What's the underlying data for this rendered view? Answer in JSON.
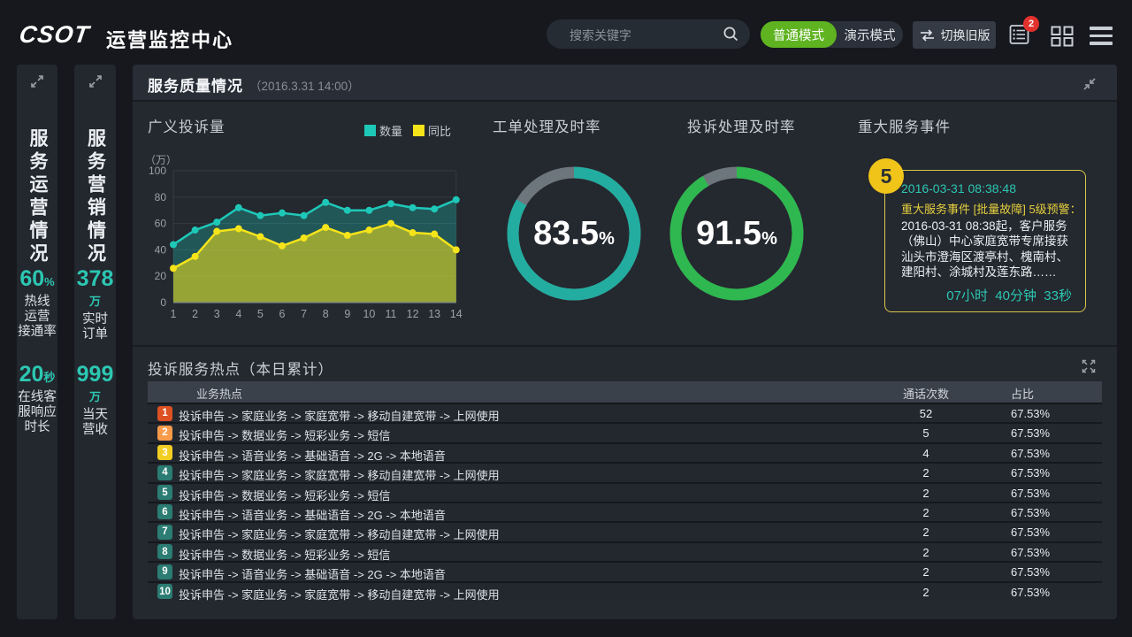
{
  "topbar": {
    "logo": "CSOT",
    "title": "运营监控中心",
    "search": {
      "placeholder": "搜索关键字"
    },
    "mode_toggle": {
      "normal": "普通模式",
      "demo": "演示模式",
      "active": "普通模式",
      "active_color": "#5fb321"
    },
    "switch_old_label": "切换旧版",
    "notification_badge": "2",
    "icons": [
      "swap-icon",
      "list-icon",
      "grid-icon",
      "menu-icon"
    ]
  },
  "sidebars": [
    {
      "title": "服务运营情况",
      "stats": [
        {
          "value": "60",
          "unit": "%",
          "label": "热线\n运营\n接通率"
        },
        {
          "value": "20",
          "unit": "秒",
          "label": "在线客\n服响应\n时长"
        }
      ]
    },
    {
      "title": "服务营销情况",
      "stats": [
        {
          "value": "378",
          "unit": "万",
          "label": "实时\n订单"
        },
        {
          "value": "999",
          "unit": "万",
          "label": "当天\n营收"
        }
      ]
    }
  ],
  "quality_panel": {
    "title": "服务质量情况",
    "timestamp": "（2016.3.31 14:00）",
    "event_section_title": "重大服务事件",
    "event": {
      "badge": "5",
      "badge_color": "#f0c419",
      "border_color": "#d8c64a",
      "datetime": "2016-03-31  08:38:48",
      "headline": "重大服务事件 [批量故障] 5级预警：",
      "body": "2016-03-31 08:38起，客户服务（佛山）中心家庭宽带专席接获汕头市澄海区渡亭村、槐南村、建阳村、涂城村及莲东路……",
      "elapsed": "07小时  40分钟  33秒",
      "accent_color": "#2cc7b2"
    }
  },
  "hotspots": {
    "title": "投诉服务热点（本日累计）",
    "columns": [
      "业务热点",
      "通话次数",
      "占比"
    ],
    "rows": [
      {
        "rank": "1",
        "color": "#dd5122",
        "label": "投诉申告 -> 家庭业务 -> 家庭宽带 -> 移动自建宽带 -> 上网使用",
        "count": "52",
        "pct": "67.53%"
      },
      {
        "rank": "2",
        "color": "#f89b4b",
        "label": "投诉申告 -> 数据业务 -> 短彩业务 -> 短信",
        "count": "5",
        "pct": "67.53%"
      },
      {
        "rank": "3",
        "color": "#f2ce23",
        "label": "投诉申告 -> 语音业务 -> 基础语音 -> 2G -> 本地语音",
        "count": "4",
        "pct": "67.53%"
      },
      {
        "rank": "4",
        "color": "#2b7c72",
        "label": "投诉申告 -> 家庭业务 -> 家庭宽带 -> 移动自建宽带 -> 上网使用",
        "count": "2",
        "pct": "67.53%"
      },
      {
        "rank": "5",
        "color": "#2b7c72",
        "label": "投诉申告 -> 数据业务 -> 短彩业务 -> 短信",
        "count": "2",
        "pct": "67.53%"
      },
      {
        "rank": "6",
        "color": "#2b7c72",
        "label": "投诉申告 -> 语音业务 -> 基础语音 -> 2G -> 本地语音",
        "count": "2",
        "pct": "67.53%"
      },
      {
        "rank": "7",
        "color": "#2b7c72",
        "label": "投诉申告 -> 家庭业务 -> 家庭宽带 -> 移动自建宽带 -> 上网使用",
        "count": "2",
        "pct": "67.53%"
      },
      {
        "rank": "8",
        "color": "#2b7c72",
        "label": "投诉申告 -> 数据业务 -> 短彩业务 -> 短信",
        "count": "2",
        "pct": "67.53%"
      },
      {
        "rank": "9",
        "color": "#2b7c72",
        "label": "投诉申告 -> 语音业务 -> 基础语音 -> 2G -> 本地语音",
        "count": "2",
        "pct": "67.53%"
      },
      {
        "rank": "10",
        "color": "#2b7c72",
        "label": "投诉申告 -> 家庭业务 -> 家庭宽带 -> 移动自建宽带 -> 上网使用",
        "count": "2",
        "pct": "67.53%"
      }
    ]
  },
  "chart_data": {
    "type": "area",
    "title": "广义投诉量",
    "y_unit": "（万）",
    "ylim": [
      0,
      100
    ],
    "y_ticks": [
      0,
      20,
      40,
      60,
      80,
      100
    ],
    "x": [
      1,
      2,
      3,
      4,
      5,
      6,
      7,
      8,
      9,
      10,
      11,
      12,
      13,
      14
    ],
    "grid": true,
    "legend_position": "top-right",
    "series": [
      {
        "name": "数量",
        "color": "#1ec8b8",
        "fill": "rgba(30,200,184,0.30)",
        "values": [
          44,
          55,
          61,
          72,
          66,
          68,
          66,
          76,
          70,
          70,
          75,
          72,
          71,
          78
        ]
      },
      {
        "name": "同比",
        "color": "#f5e41a",
        "fill": "rgba(245,228,26,0.55)",
        "values": [
          26,
          35,
          54,
          56,
          50,
          43,
          49,
          57,
          51,
          55,
          60,
          53,
          52,
          40
        ]
      }
    ],
    "gauges": [
      {
        "title": "工单处理及时率",
        "value": 83.5,
        "unit": "%",
        "color": "#23ada0",
        "rest_color": "#6e767d"
      },
      {
        "title": "投诉处理及时率",
        "value": 91.5,
        "unit": "%",
        "color": "#2eb84f",
        "rest_color": "#6e767d"
      }
    ]
  }
}
